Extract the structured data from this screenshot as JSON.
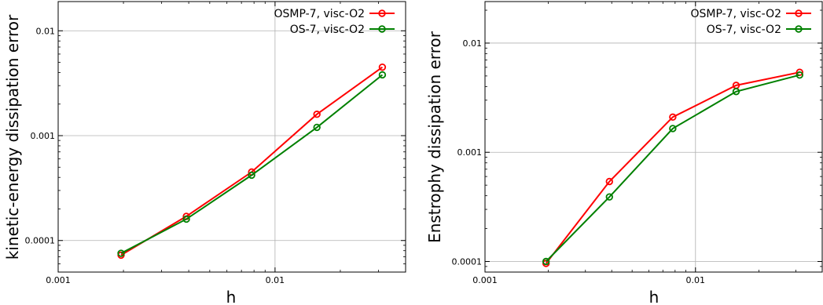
{
  "chart_data": [
    {
      "type": "line",
      "xlabel": "h",
      "ylabel": "kinetic-energy dissipation error",
      "xscale": "log",
      "yscale": "log",
      "xlim": [
        0.001,
        0.04
      ],
      "ylim": [
        5e-05,
        0.019
      ],
      "xticks": [
        {
          "value": 0.001,
          "label": "0.001"
        },
        {
          "value": 0.01,
          "label": "0.01"
        }
      ],
      "yticks": [
        {
          "value": 0.0001,
          "label": "0.0001"
        },
        {
          "value": 0.001,
          "label": "0.001"
        },
        {
          "value": 0.01,
          "label": "0.01"
        }
      ],
      "grid": true,
      "legend_position": "top-right",
      "series": [
        {
          "name": "OSMP-7, visc-O2",
          "color": "#ff0000",
          "marker": "circle",
          "x": [
            0.00195,
            0.0039,
            0.0078,
            0.0156,
            0.03125
          ],
          "y": [
            7.25e-05,
            0.00017,
            0.00045,
            0.0016,
            0.0045
          ]
        },
        {
          "name": "OS-7, visc-O2",
          "color": "#008000",
          "marker": "circle",
          "x": [
            0.00195,
            0.0039,
            0.0078,
            0.0156,
            0.03125
          ],
          "y": [
            7.55e-05,
            0.00016,
            0.00042,
            0.0012,
            0.0038
          ]
        }
      ]
    },
    {
      "type": "line",
      "xlabel": "h",
      "ylabel": "Enstrophy dissipation error",
      "xscale": "log",
      "yscale": "log",
      "xlim": [
        0.001,
        0.04
      ],
      "ylim": [
        8e-05,
        0.024
      ],
      "xticks": [
        {
          "value": 0.001,
          "label": "0.001"
        },
        {
          "value": 0.01,
          "label": "0.01"
        }
      ],
      "yticks": [
        {
          "value": 0.0001,
          "label": "0.0001"
        },
        {
          "value": 0.001,
          "label": "0.001"
        },
        {
          "value": 0.01,
          "label": "0.01"
        }
      ],
      "grid": true,
      "legend_position": "top-right",
      "series": [
        {
          "name": "OSMP-7, visc-O2",
          "color": "#ff0000",
          "marker": "circle",
          "x": [
            0.00195,
            0.0039,
            0.0078,
            0.0156,
            0.03125
          ],
          "y": [
            9.6e-05,
            0.00054,
            0.0021,
            0.0041,
            0.0054
          ]
        },
        {
          "name": "OS-7, visc-O2",
          "color": "#008000",
          "marker": "circle",
          "x": [
            0.00195,
            0.0039,
            0.0078,
            0.0156,
            0.03125
          ],
          "y": [
            0.0001,
            0.00039,
            0.00165,
            0.0036,
            0.0051
          ]
        }
      ]
    }
  ]
}
